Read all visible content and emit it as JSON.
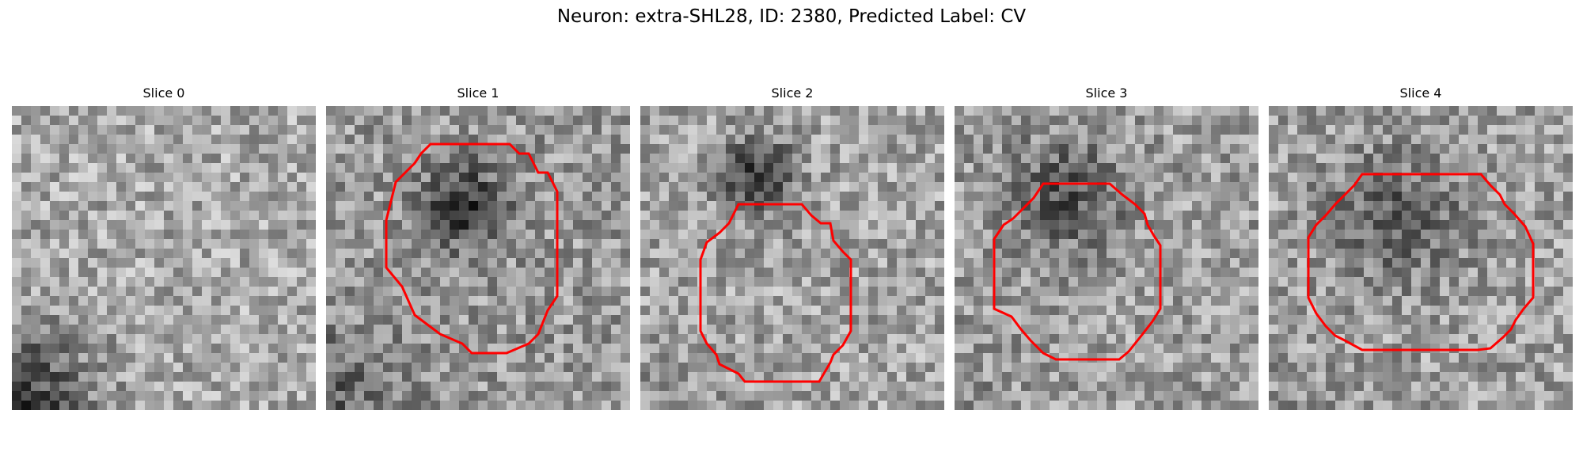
{
  "figure": {
    "title": "Neuron: extra-SHL28, ID: 2380, Predicted Label: CV"
  },
  "colors": {
    "contour": "#ff0000",
    "colormap": "grayscale"
  },
  "panels": [
    {
      "label": "Slice 0",
      "has_contour": false
    },
    {
      "label": "Slice 1",
      "has_contour": true
    },
    {
      "label": "Slice 2",
      "has_contour": true
    },
    {
      "label": "Slice 3",
      "has_contour": true
    },
    {
      "label": "Slice 4",
      "has_contour": true
    }
  ]
}
